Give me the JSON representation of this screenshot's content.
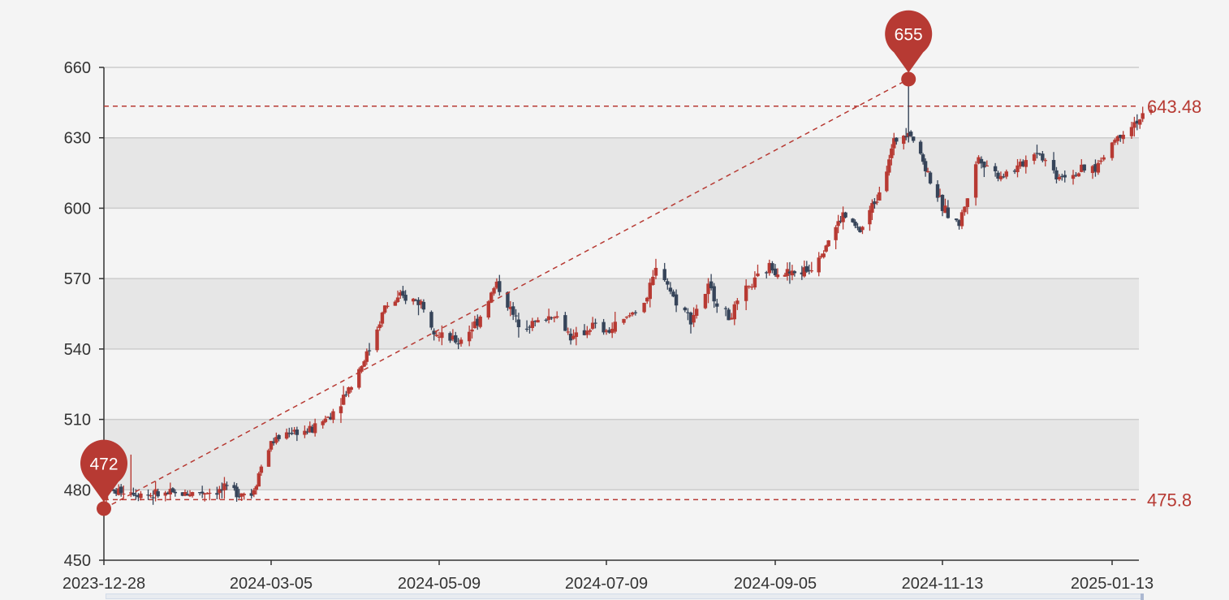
{
  "chart_data": {
    "type": "candlestick",
    "title": "",
    "xlabel": "",
    "ylabel": "",
    "ylim": [
      450,
      660
    ],
    "yticks": [
      450,
      480,
      510,
      540,
      570,
      600,
      630,
      660
    ],
    "xticks": [
      "2023-12-28",
      "2024-03-05",
      "2024-05-09",
      "2024-07-09",
      "2024-09-05",
      "2024-11-13",
      "2025-01-13"
    ],
    "grid": "horizontal, alternating bands",
    "colors": {
      "up": "#b73a33",
      "down": "#364459",
      "band": "#e6e6e6",
      "background": "#f4f4f4"
    },
    "markers": {
      "min": {
        "label": "472",
        "value": 472,
        "date": "2023-12-28"
      },
      "max": {
        "label": "655",
        "value": 655,
        "date": "2024-10-30"
      }
    },
    "lines": {
      "upper": {
        "label": "643.48",
        "value": 643.48
      },
      "lower": {
        "label": "475.8",
        "value": 475.8
      }
    },
    "trendline": {
      "from": {
        "date": "2023-12-28",
        "value": 472
      },
      "to": {
        "date": "2024-10-30",
        "value": 655
      }
    },
    "series": [
      {
        "name": "",
        "anchors": [
          [
            "2023-12-28",
            478
          ],
          [
            "2024-01-05",
            480
          ],
          [
            "2024-01-15",
            478
          ],
          [
            "2024-01-25",
            478
          ],
          [
            "2024-02-05",
            479
          ],
          [
            "2024-02-18",
            480
          ],
          [
            "2024-02-26",
            478
          ],
          [
            "2024-03-01",
            490
          ],
          [
            "2024-03-05",
            500
          ],
          [
            "2024-03-12",
            505
          ],
          [
            "2024-03-20",
            505
          ],
          [
            "2024-03-28",
            512
          ],
          [
            "2024-04-05",
            525
          ],
          [
            "2024-04-12",
            540
          ],
          [
            "2024-04-18",
            558
          ],
          [
            "2024-04-25",
            562
          ],
          [
            "2024-05-02",
            560
          ],
          [
            "2024-05-09",
            545
          ],
          [
            "2024-05-16",
            543
          ],
          [
            "2024-05-23",
            552
          ],
          [
            "2024-05-30",
            568
          ],
          [
            "2024-06-06",
            552
          ],
          [
            "2024-06-13",
            551
          ],
          [
            "2024-06-20",
            555
          ],
          [
            "2024-06-27",
            544
          ],
          [
            "2024-07-04",
            550
          ],
          [
            "2024-07-09",
            547
          ],
          [
            "2024-07-16",
            553
          ],
          [
            "2024-07-23",
            562
          ],
          [
            "2024-07-27",
            577
          ],
          [
            "2024-08-01",
            562
          ],
          [
            "2024-08-07",
            553
          ],
          [
            "2024-08-13",
            566
          ],
          [
            "2024-08-20",
            553
          ],
          [
            "2024-08-27",
            566
          ],
          [
            "2024-09-03",
            575
          ],
          [
            "2024-09-05",
            574
          ],
          [
            "2024-09-12",
            572
          ],
          [
            "2024-09-19",
            574
          ],
          [
            "2024-09-26",
            585
          ],
          [
            "2024-10-03",
            597
          ],
          [
            "2024-10-10",
            590
          ],
          [
            "2024-10-17",
            605
          ],
          [
            "2024-10-24",
            628
          ],
          [
            "2024-10-30",
            634
          ],
          [
            "2024-11-05",
            620
          ],
          [
            "2024-11-13",
            600
          ],
          [
            "2024-11-19",
            593
          ],
          [
            "2024-11-26",
            622
          ],
          [
            "2024-12-03",
            614
          ],
          [
            "2024-12-10",
            617
          ],
          [
            "2024-12-17",
            625
          ],
          [
            "2024-12-24",
            614
          ],
          [
            "2024-12-31",
            615
          ],
          [
            "2025-01-07",
            617
          ],
          [
            "2025-01-13",
            628
          ],
          [
            "2025-01-20",
            636
          ],
          [
            "2025-01-27",
            641
          ]
        ]
      }
    ]
  }
}
